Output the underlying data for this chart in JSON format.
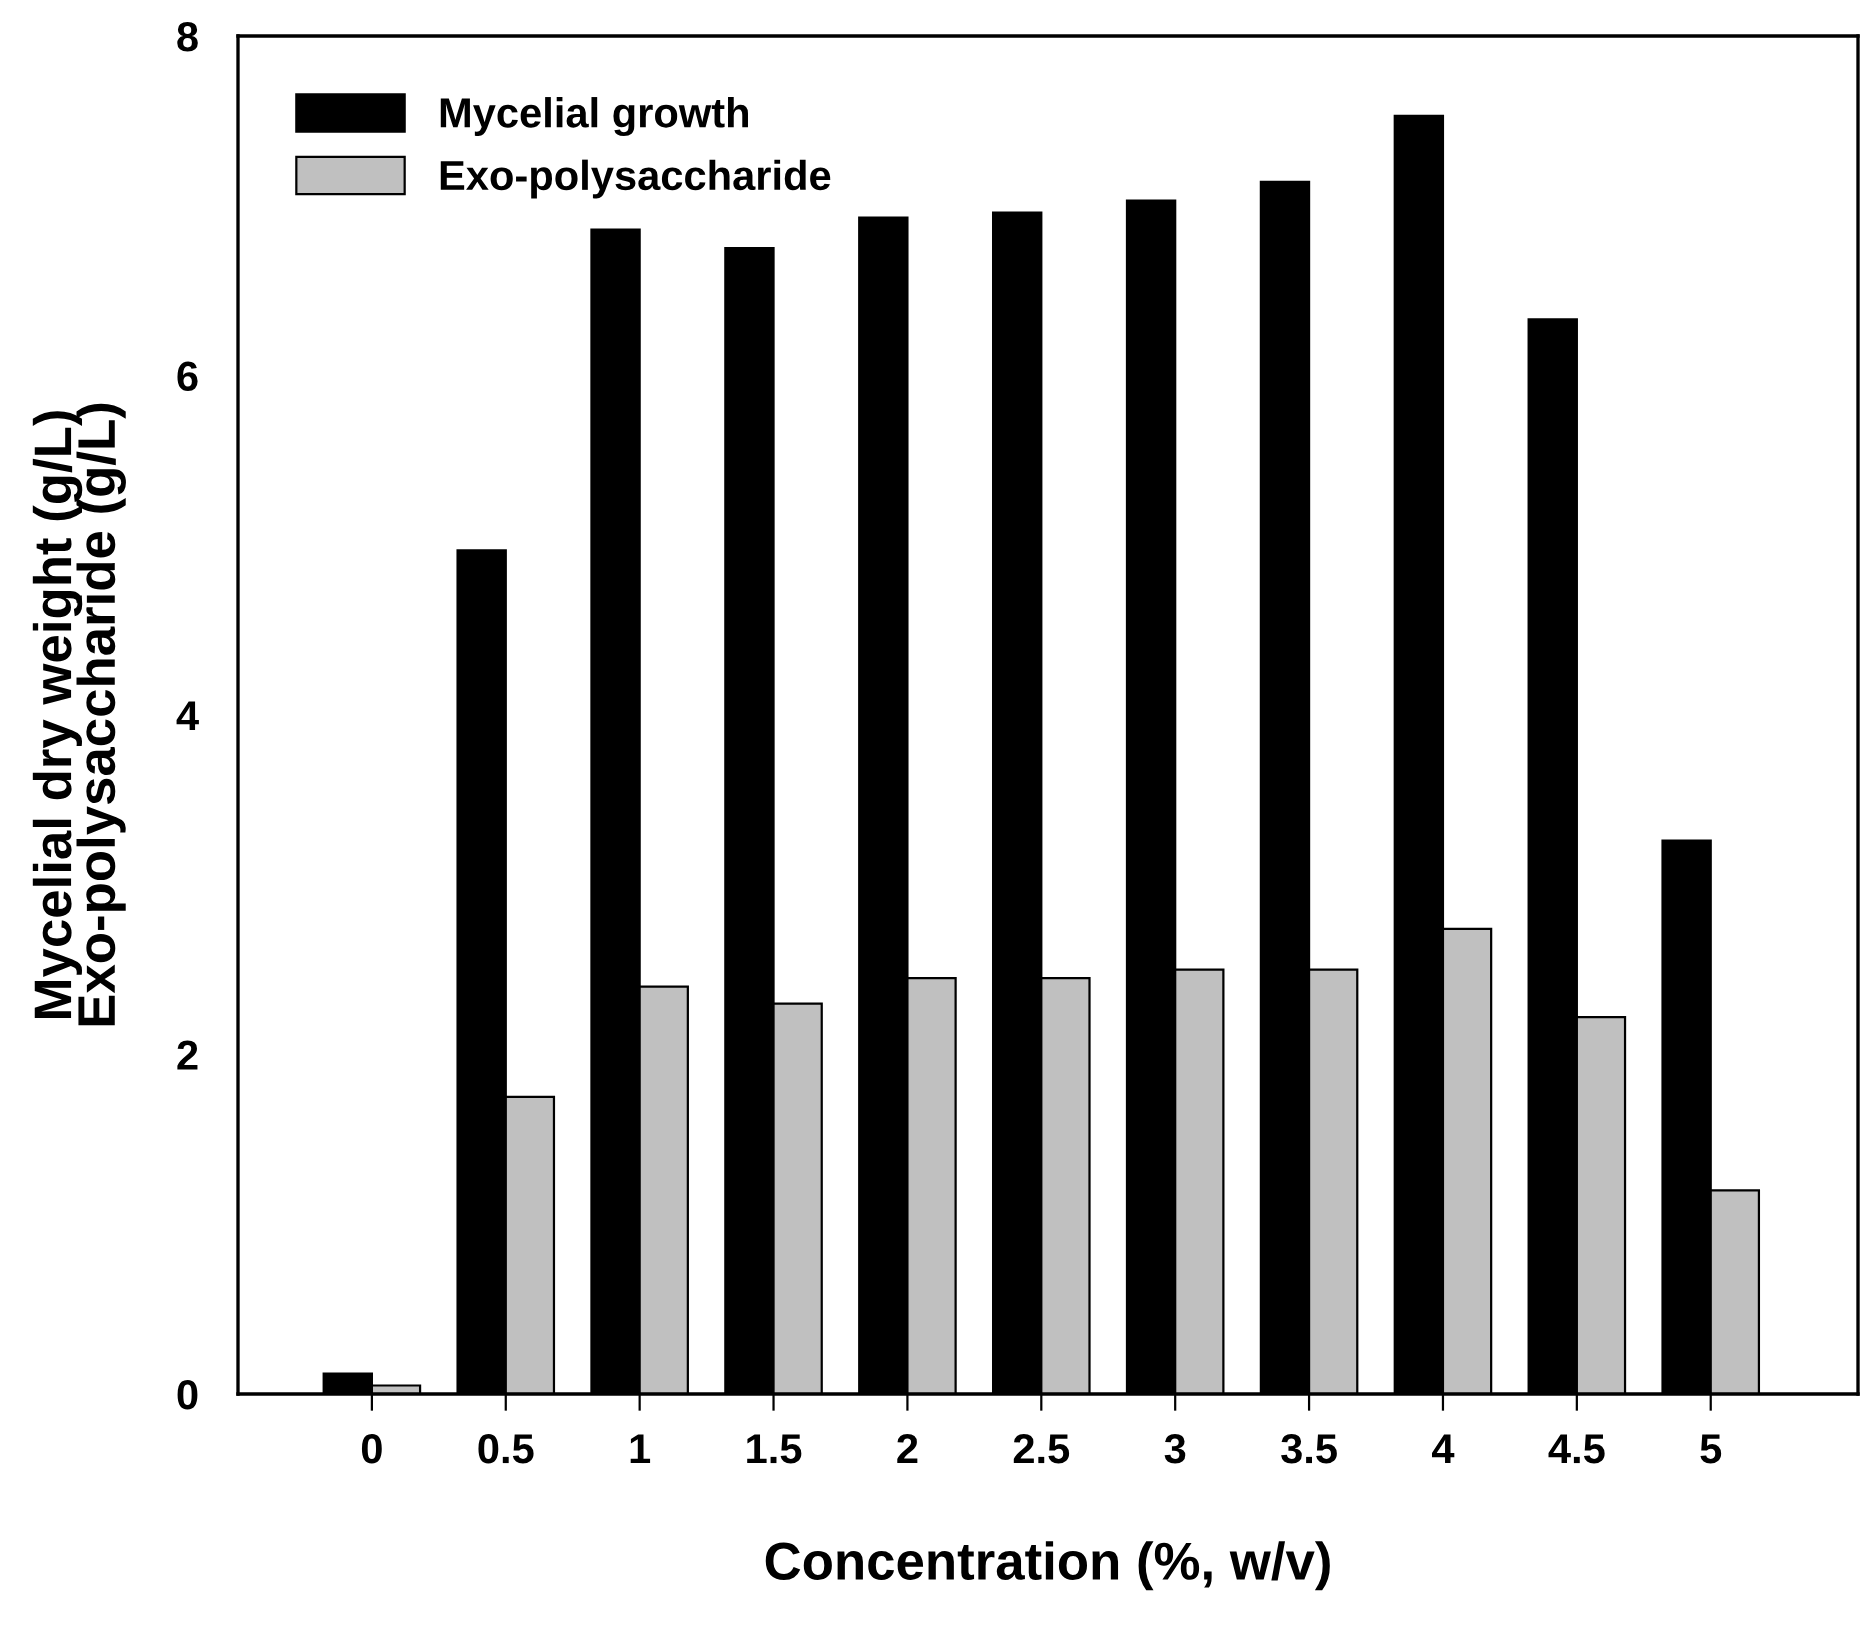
{
  "chart_data": {
    "type": "bar",
    "xlabel": "Concentration (%, w/v)",
    "ylabel": "Mycelial dry weight (g/L)\nExo-polysaccharide (g/L)",
    "categories": [
      "0",
      "0.5",
      "1",
      "1.5",
      "2",
      "2.5",
      "3",
      "3.5",
      "4",
      "4.5",
      "5"
    ],
    "series": [
      {
        "name": "Mycelial growth",
        "color": "#000000",
        "values": [
          0.12,
          4.97,
          6.86,
          6.75,
          6.93,
          6.96,
          7.03,
          7.14,
          7.53,
          6.33,
          3.26
        ]
      },
      {
        "name": "Exo-polysaccharide",
        "color": "#c0c0c0",
        "values": [
          0.05,
          1.75,
          2.4,
          2.3,
          2.45,
          2.45,
          2.5,
          2.5,
          2.74,
          2.22,
          1.2
        ]
      }
    ],
    "ylim": [
      0,
      8
    ],
    "yticks": [
      0,
      2,
      4,
      6,
      8
    ],
    "grid": false,
    "legend": "top left"
  }
}
